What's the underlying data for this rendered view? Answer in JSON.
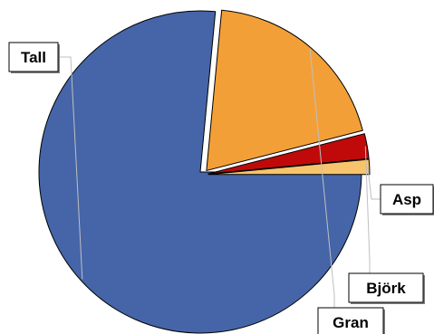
{
  "chart_data": {
    "type": "pie",
    "title": "",
    "slices": [
      {
        "label": "Tall",
        "value": 76.5,
        "color": "#4565a8",
        "exploded": false
      },
      {
        "label": "Gran",
        "value": 19.5,
        "color": "#f39f38",
        "exploded": true
      },
      {
        "label": "Björk",
        "value": 2.5,
        "color": "#c00a0a",
        "exploded": true
      },
      {
        "label": "Asp",
        "value": 1.5,
        "color": "#f7c46d",
        "exploded": true
      }
    ],
    "start": "3 o'clock",
    "direction": "clockwise",
    "legend": "none"
  }
}
